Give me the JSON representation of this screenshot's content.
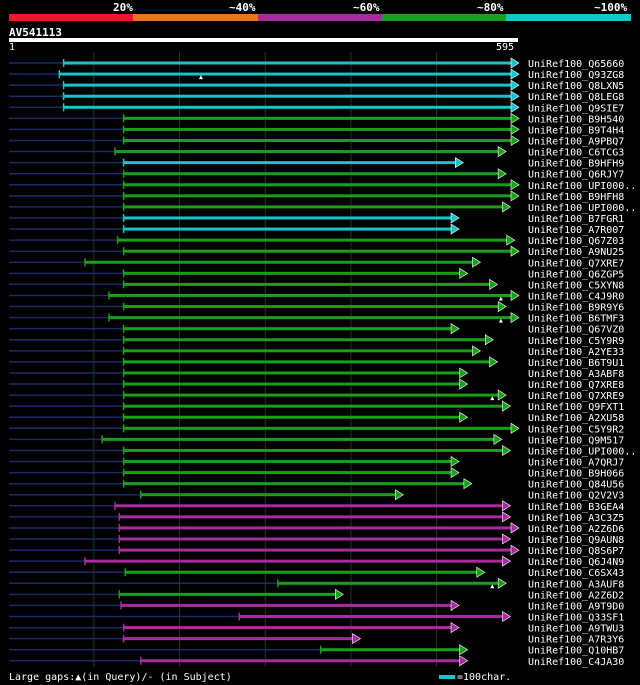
{
  "query": {
    "title": "AV541113",
    "start_label": "1",
    "end_label": "595"
  },
  "scale": {
    "labels": [
      "20%",
      "~40%",
      "~60%",
      "~80%",
      "~100%"
    ],
    "colors": [
      "#e8192c",
      "#e8751a",
      "#a82ca0",
      "#19a019",
      "#19c3c8"
    ]
  },
  "legend": {
    "gaps_text": "Large gaps:▲(in Query)/- (in Subject)",
    "scale_text": "=100char."
  },
  "chart_data": {
    "type": "alignment",
    "title": "AV541113",
    "x_range": [
      1,
      595
    ],
    "color_key": {
      "cyan": "~100%",
      "green": "~80%",
      "magenta": "~60%"
    },
    "hits": [
      {
        "name": "UniRef100_Q65660",
        "start": 65,
        "end": 595,
        "color": "cyan",
        "dashed_start": 1
      },
      {
        "name": "UniRef100_Q93ZG8",
        "start": 60,
        "end": 595,
        "color": "cyan",
        "dashed_start": 1,
        "gap_markers": [
          225
        ]
      },
      {
        "name": "UniRef100_Q8LXN5",
        "start": 65,
        "end": 595,
        "color": "cyan",
        "dashed_start": 1
      },
      {
        "name": "UniRef100_Q8LEG8",
        "start": 65,
        "end": 595,
        "color": "cyan",
        "dashed_start": 1
      },
      {
        "name": "UniRef100_Q9SIE7",
        "start": 65,
        "end": 595,
        "color": "cyan",
        "dashed_start": 1
      },
      {
        "name": "UniRef100_B9H540",
        "start": 135,
        "end": 595,
        "color": "green",
        "dashed_start": 1
      },
      {
        "name": "UniRef100_B9T4H4",
        "start": 135,
        "end": 595,
        "color": "green",
        "dashed_start": 1
      },
      {
        "name": "UniRef100_A9PBQ7",
        "start": 135,
        "end": 595,
        "color": "green",
        "dashed_start": 1
      },
      {
        "name": "UniRef100_C6TCG3",
        "start": 125,
        "end": 580,
        "color": "green",
        "dashed_start": 1
      },
      {
        "name": "UniRef100_B9HFH9",
        "start": 135,
        "end": 530,
        "color": "cyan",
        "dashed_start": 1
      },
      {
        "name": "UniRef100_Q6RJY7",
        "start": 135,
        "end": 580,
        "color": "green",
        "dashed_start": 1
      },
      {
        "name": "UniRef100_UPI000..",
        "start": 135,
        "end": 595,
        "color": "green",
        "dashed_start": 1
      },
      {
        "name": "UniRef100_B9HFH8",
        "start": 135,
        "end": 595,
        "color": "green",
        "dashed_start": 1
      },
      {
        "name": "UniRef100_UPI000..",
        "start": 135,
        "end": 585,
        "color": "green",
        "dashed_start": 1
      },
      {
        "name": "UniRef100_B7FGR1",
        "start": 135,
        "end": 525,
        "color": "cyan",
        "dashed_start": 1
      },
      {
        "name": "UniRef100_A7R007",
        "start": 135,
        "end": 525,
        "color": "cyan",
        "dashed_start": 1
      },
      {
        "name": "UniRef100_Q67Z03",
        "start": 128,
        "end": 590,
        "color": "green",
        "dashed_start": 1
      },
      {
        "name": "UniRef100_A9NU25",
        "start": 135,
        "end": 595,
        "color": "green",
        "dashed_start": 1
      },
      {
        "name": "UniRef100_Q7XRE7",
        "start": 90,
        "end": 550,
        "color": "green",
        "dashed_start": 1
      },
      {
        "name": "UniRef100_Q6ZGP5",
        "start": 135,
        "end": 535,
        "color": "green",
        "dashed_start": 1
      },
      {
        "name": "UniRef100_C5XYN8",
        "start": 135,
        "end": 570,
        "color": "green",
        "dashed_start": 1
      },
      {
        "name": "UniRef100_C4J9R0",
        "start": 118,
        "end": 595,
        "color": "green",
        "dashed_start": 1,
        "gap_markers": [
          575
        ]
      },
      {
        "name": "UniRef100_B9R9Y6",
        "start": 135,
        "end": 580,
        "color": "green",
        "dashed_start": 1
      },
      {
        "name": "UniRef100_B6TMF3",
        "start": 118,
        "end": 595,
        "color": "green",
        "dashed_start": 1,
        "gap_markers": [
          575
        ]
      },
      {
        "name": "UniRef100_Q67VZ0",
        "start": 135,
        "end": 525,
        "color": "green",
        "dashed_start": 1
      },
      {
        "name": "UniRef100_C5Y9R9",
        "start": 135,
        "end": 565,
        "color": "green",
        "dashed_start": 1
      },
      {
        "name": "UniRef100_A2YE33",
        "start": 135,
        "end": 550,
        "color": "green",
        "dashed_start": 1
      },
      {
        "name": "UniRef100_B6T9U1",
        "start": 135,
        "end": 570,
        "color": "green",
        "dashed_start": 1
      },
      {
        "name": "UniRef100_A3ABF8",
        "start": 135,
        "end": 535,
        "color": "green",
        "dashed_start": 1
      },
      {
        "name": "UniRef100_Q7XRE8",
        "start": 135,
        "end": 535,
        "color": "green",
        "dashed_start": 1
      },
      {
        "name": "UniRef100_Q7XRE9",
        "start": 135,
        "end": 580,
        "color": "green",
        "dashed_start": 1,
        "gap_markers": [
          565
        ]
      },
      {
        "name": "UniRef100_Q9FXT1",
        "start": 135,
        "end": 585,
        "color": "green",
        "dashed_start": 1
      },
      {
        "name": "UniRef100_A2XU58",
        "start": 135,
        "end": 535,
        "color": "green",
        "dashed_start": 1
      },
      {
        "name": "UniRef100_C5Y9R2",
        "start": 135,
        "end": 595,
        "color": "green",
        "dashed_start": 1
      },
      {
        "name": "UniRef100_Q9M517",
        "start": 110,
        "end": 575,
        "color": "green",
        "dashed_start": 1
      },
      {
        "name": "UniRef100_UPI000..",
        "start": 135,
        "end": 585,
        "color": "green",
        "dashed_start": 1
      },
      {
        "name": "UniRef100_A7QRJ7",
        "start": 135,
        "end": 525,
        "color": "green",
        "dashed_start": 1
      },
      {
        "name": "UniRef100_B9H066",
        "start": 135,
        "end": 525,
        "color": "green",
        "dashed_start": 1
      },
      {
        "name": "UniRef100_Q84U56",
        "start": 135,
        "end": 540,
        "color": "green",
        "dashed_start": 1
      },
      {
        "name": "UniRef100_Q2V2V3",
        "start": 155,
        "end": 460,
        "color": "green",
        "dashed_start": 1
      },
      {
        "name": "UniRef100_B3GEA4",
        "start": 125,
        "end": 585,
        "color": "magenta",
        "dashed_start": 1
      },
      {
        "name": "UniRef100_A3C3Z5",
        "start": 130,
        "end": 585,
        "color": "magenta",
        "dashed_start": 1
      },
      {
        "name": "UniRef100_A2Z6D6",
        "start": 130,
        "end": 595,
        "color": "magenta",
        "dashed_start": 1
      },
      {
        "name": "UniRef100_Q9AUN8",
        "start": 130,
        "end": 585,
        "color": "magenta",
        "dashed_start": 1
      },
      {
        "name": "UniRef100_Q8S6P7",
        "start": 130,
        "end": 595,
        "color": "magenta",
        "dashed_start": 1
      },
      {
        "name": "UniRef100_Q6J4N9",
        "start": 90,
        "end": 585,
        "color": "magenta",
        "dashed_start": 1
      },
      {
        "name": "UniRef100_C6SX43",
        "start": 137,
        "end": 555,
        "color": "green",
        "dashed_start": 1
      },
      {
        "name": "UniRef100_A3AUF8",
        "start": 315,
        "end": 580,
        "color": "green",
        "dashed_start": 1,
        "gap_markers": [
          565
        ]
      },
      {
        "name": "UniRef100_A2Z6D2",
        "start": 130,
        "end": 390,
        "color": "green",
        "dashed_start": 1
      },
      {
        "name": "UniRef100_A9T9D0",
        "start": 132,
        "end": 525,
        "color": "magenta",
        "dashed_start": 1
      },
      {
        "name": "UniRef100_Q33SF1",
        "start": 270,
        "end": 585,
        "color": "magenta",
        "dashed_start": 1
      },
      {
        "name": "UniRef100_A9TWU3",
        "start": 135,
        "end": 525,
        "color": "magenta",
        "dashed_start": 1
      },
      {
        "name": "UniRef100_A7R3Y6",
        "start": 135,
        "end": 410,
        "color": "magenta",
        "dashed_start": 1
      },
      {
        "name": "UniRef100_Q10HB7",
        "start": 365,
        "end": 535,
        "color": "green",
        "dashed_start": 1
      },
      {
        "name": "UniRef100_C4JA30",
        "start": 155,
        "end": 535,
        "color": "magenta",
        "dashed_start": 1
      }
    ]
  }
}
